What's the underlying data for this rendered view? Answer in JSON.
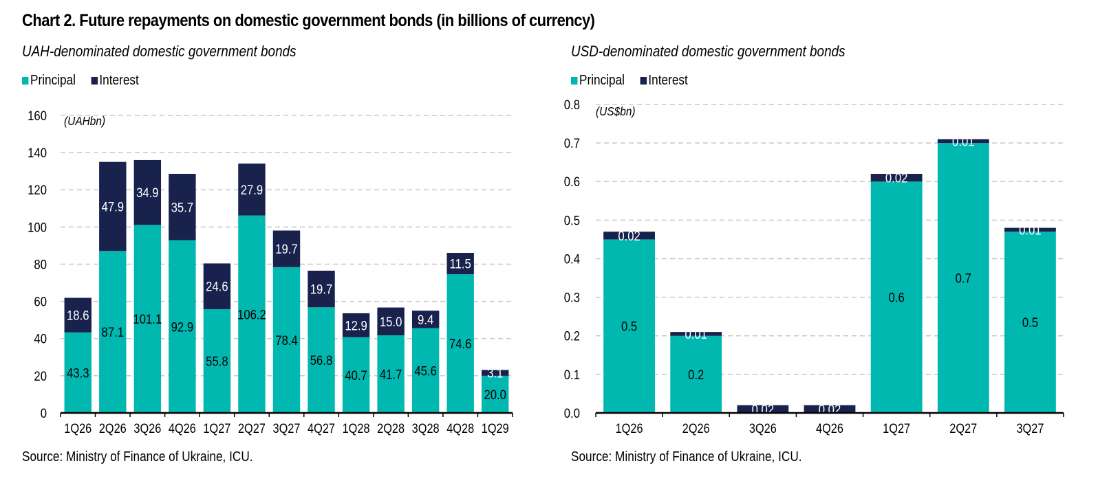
{
  "title": "Chart 2. Future repayments on domestic government bonds (in billions of currency)",
  "colors": {
    "principal": "#00B8B0",
    "interest": "#18224D",
    "grid": "#C8C8C8",
    "axis": "#000000"
  },
  "chart_data": [
    {
      "type": "bar",
      "stacked": true,
      "title": "UAH-denominated domestic government bonds",
      "unit_label": "(UAHbn)",
      "xlabel": "",
      "ylabel": "",
      "ylim": [
        0,
        160
      ],
      "yticks": [
        0,
        20,
        40,
        60,
        80,
        100,
        120,
        140,
        160
      ],
      "ytick_labels": [
        "0",
        "20",
        "40",
        "60",
        "80",
        "100",
        "120",
        "140",
        "160"
      ],
      "grid": true,
      "legend": {
        "placement": "top-left",
        "entries": [
          "Principal",
          "Interest"
        ]
      },
      "categories": [
        "1Q26",
        "2Q26",
        "3Q26",
        "4Q26",
        "1Q27",
        "2Q27",
        "3Q27",
        "4Q27",
        "1Q28",
        "2Q28",
        "3Q28",
        "4Q28",
        "1Q29"
      ],
      "series": [
        {
          "name": "Principal",
          "values": [
            43.3,
            87.1,
            101.1,
            92.9,
            55.8,
            106.2,
            78.4,
            56.8,
            40.7,
            41.7,
            45.6,
            74.6,
            20.0
          ],
          "labels": [
            "43.3",
            "87.1",
            "101.1",
            "92.9",
            "55.8",
            "106.2",
            "78.4",
            "56.8",
            "40.7",
            "41.7",
            "45.6",
            "74.6",
            "20.0"
          ]
        },
        {
          "name": "Interest",
          "values": [
            18.6,
            47.9,
            34.9,
            35.7,
            24.6,
            27.9,
            19.7,
            19.7,
            12.9,
            15.0,
            9.4,
            11.5,
            3.1
          ],
          "labels": [
            "18.6",
            "47.9",
            "34.9",
            "35.7",
            "24.6",
            "27.9",
            "19.7",
            "19.7",
            "12.9",
            "15.0",
            "9.4",
            "11.5",
            "3.1"
          ]
        }
      ],
      "source": "Source: Ministry of Finance of Ukraine, ICU."
    },
    {
      "type": "bar",
      "stacked": true,
      "title": "USD-denominated domestic government bonds",
      "unit_label": "(US$bn)",
      "xlabel": "",
      "ylabel": "",
      "ylim": [
        0,
        0.8
      ],
      "yticks": [
        0,
        0.1,
        0.2,
        0.3,
        0.4,
        0.5,
        0.6,
        0.7,
        0.8
      ],
      "ytick_labels": [
        "0.0",
        "0.1",
        "0.2",
        "0.3",
        "0.4",
        "0.5",
        "0.6",
        "0.7",
        "0.8"
      ],
      "grid": true,
      "legend": {
        "placement": "top-left",
        "entries": [
          "Principal",
          "Interest"
        ]
      },
      "categories": [
        "1Q26",
        "2Q26",
        "3Q26",
        "4Q26",
        "1Q27",
        "2Q27",
        "3Q27"
      ],
      "series": [
        {
          "name": "Principal",
          "values": [
            0.45,
            0.2,
            0.0,
            0.0,
            0.6,
            0.7,
            0.47
          ],
          "labels": [
            "0.5",
            "0.2",
            "",
            "",
            "0.6",
            "0.7",
            "0.5"
          ]
        },
        {
          "name": "Interest",
          "values": [
            0.02,
            0.01,
            0.02,
            0.02,
            0.02,
            0.01,
            0.01
          ],
          "labels": [
            "0.02",
            "0.01",
            "0.02",
            "0.02",
            "0.02",
            "0.01",
            "0.01"
          ]
        }
      ],
      "source": "Source: Ministry of Finance of Ukraine, ICU."
    }
  ]
}
